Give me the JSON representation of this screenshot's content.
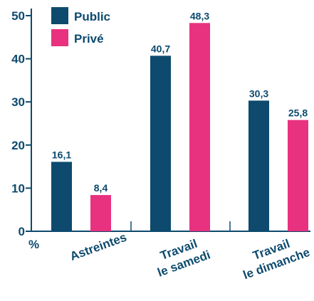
{
  "chart_data": {
    "type": "bar",
    "title": "",
    "xlabel": "",
    "ylabel": "%",
    "ylim": [
      0,
      50
    ],
    "yticks": [
      0,
      10,
      20,
      30,
      40,
      50
    ],
    "grid": false,
    "legend_position": "top-left",
    "categories": [
      [
        "Astreintes"
      ],
      [
        "Travail",
        "le samedi"
      ],
      [
        "Travail",
        "le dimanche"
      ]
    ],
    "series": [
      {
        "name": "Public",
        "color": "#0d4a6e",
        "values": [
          16.1,
          40.7,
          30.3
        ],
        "labels": [
          "16,1",
          "40,7",
          "30,3"
        ]
      },
      {
        "name": "Privé",
        "color": "#e8317f",
        "values": [
          8.4,
          48.3,
          25.8
        ],
        "labels": [
          "8,4",
          "48,3",
          "25,8"
        ]
      }
    ]
  }
}
